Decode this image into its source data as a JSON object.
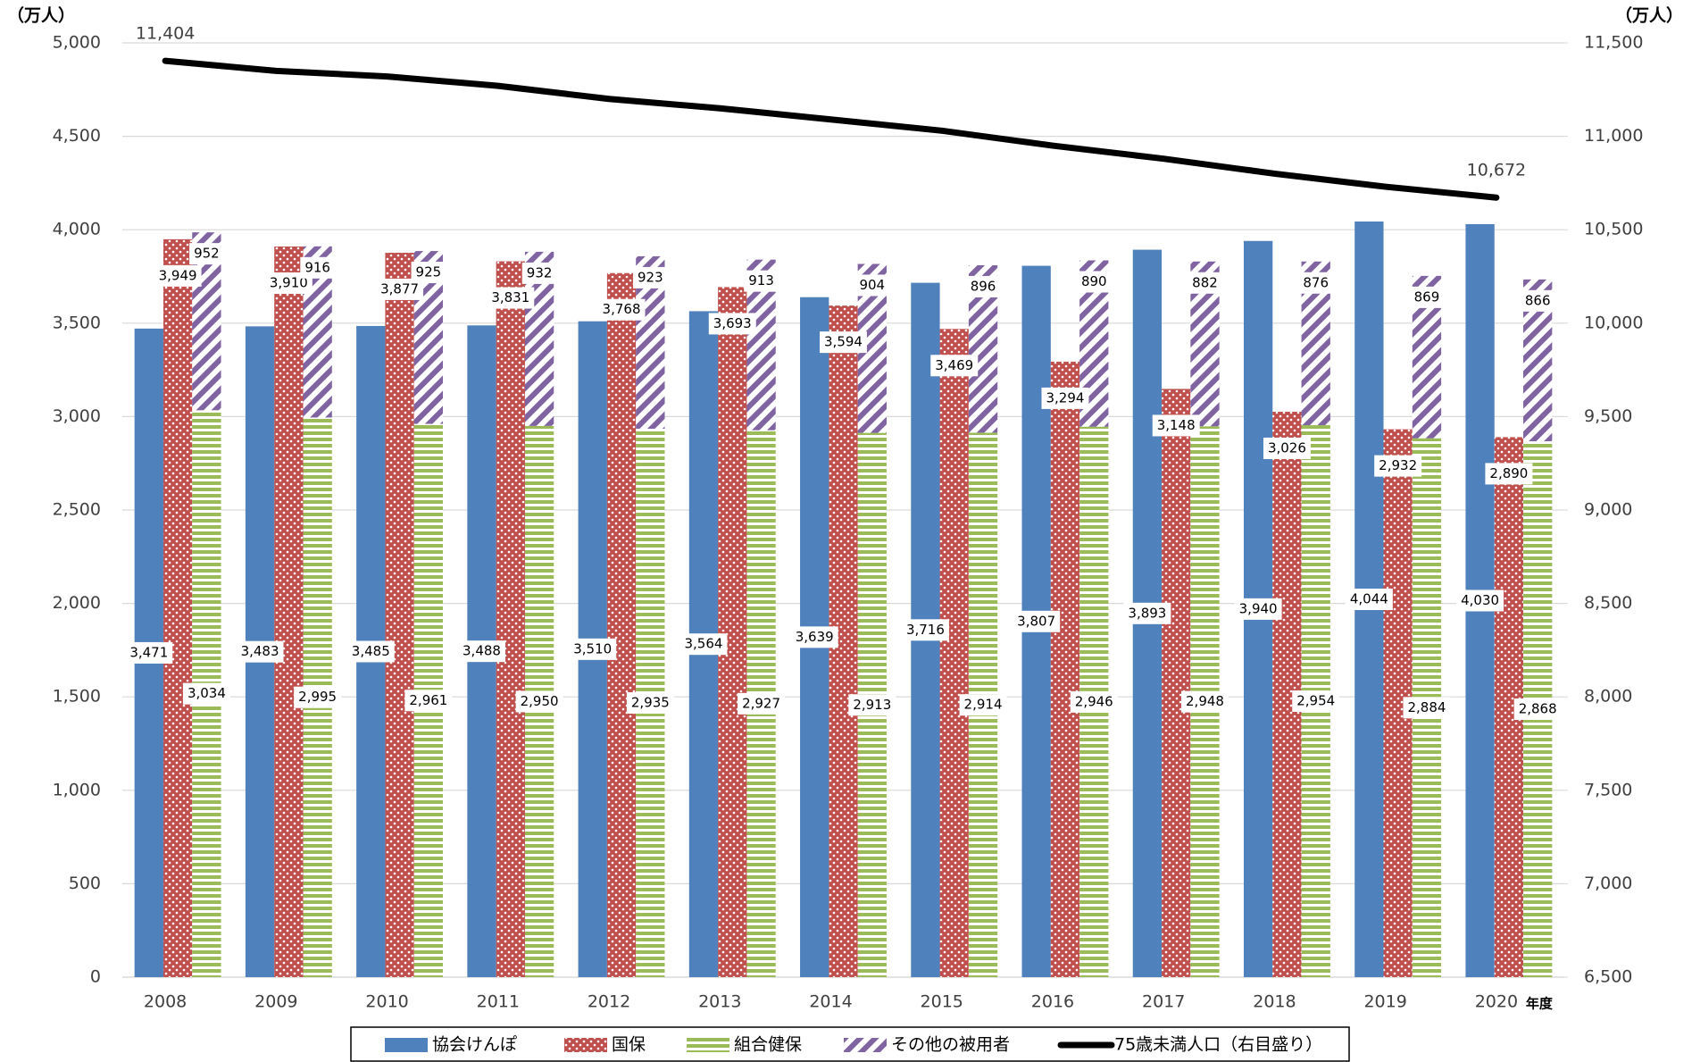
{
  "chart_data": {
    "type": "bar",
    "y_label": "（万人）",
    "y2_label": "（万人）",
    "x_label": "年度",
    "categories": [
      "2008",
      "2009",
      "2010",
      "2011",
      "2012",
      "2013",
      "2014",
      "2015",
      "2016",
      "2017",
      "2018",
      "2019",
      "2020"
    ],
    "series": [
      {
        "name": "協会けんぽ",
        "color": "#4f81bd",
        "pattern": "solid",
        "values": [
          3471,
          3483,
          3485,
          3488,
          3510,
          3564,
          3639,
          3716,
          3807,
          3893,
          3940,
          4044,
          4030
        ],
        "value_labels": [
          "3,471",
          "3,483",
          "3,485",
          "3,488",
          "3,510",
          "3,564",
          "3,639",
          "3,716",
          "3,807",
          "3,893",
          "3,940",
          "4,044",
          "4,030"
        ]
      },
      {
        "name": "国保",
        "color": "#c0504d",
        "pattern": "dots",
        "values": [
          3949,
          3910,
          3877,
          3831,
          3768,
          3693,
          3594,
          3469,
          3294,
          3148,
          3026,
          2932,
          2890
        ],
        "value_labels": [
          "3,949",
          "3,910",
          "3,877",
          "3,831",
          "3,768",
          "3,693",
          "3,594",
          "3,469",
          "3,294",
          "3,148",
          "3,026",
          "2,932",
          "2,890"
        ]
      },
      {
        "name": "組合健保",
        "color": "#9bbb59",
        "pattern": "horizontal",
        "values": [
          3034,
          2995,
          2961,
          2950,
          2935,
          2927,
          2913,
          2914,
          2946,
          2948,
          2954,
          2884,
          2868
        ],
        "value_labels": [
          "3,034",
          "2,995",
          "2,961",
          "2,950",
          "2,935",
          "2,927",
          "2,913",
          "2,914",
          "2,946",
          "2,948",
          "2,954",
          "2,884",
          "2,868"
        ]
      },
      {
        "name": "その他の被用者",
        "color": "#8064a2",
        "pattern": "diagonal",
        "stack": true,
        "values": [
          952,
          916,
          925,
          932,
          923,
          913,
          904,
          896,
          890,
          882,
          876,
          869,
          866
        ],
        "value_labels": [
          "952",
          "916",
          "925",
          "932",
          "923",
          "913",
          "904",
          "896",
          "890",
          "882",
          "876",
          "869",
          "866"
        ]
      },
      {
        "name": "75歳未満人口（右目盛り）",
        "type": "line",
        "axis": "y2",
        "color": "#000000",
        "values": [
          11404,
          11350,
          11320,
          11270,
          11200,
          11150,
          11090,
          11030,
          10950,
          10880,
          10800,
          10730,
          10672
        ],
        "value_labels": [
          "11,404",
          null,
          null,
          null,
          null,
          null,
          null,
          null,
          null,
          null,
          null,
          null,
          "10,672"
        ]
      }
    ],
    "ylim": [
      0,
      5000
    ],
    "yticks": [
      0,
      500,
      {
        "value": 1000,
        "label": "1,000"
      },
      {
        "value": 1500,
        "label": "1,500"
      },
      {
        "value": 2000,
        "label": "2,000"
      },
      {
        "value": 2500,
        "label": "2,500"
      },
      {
        "value": 3000,
        "label": "3,000"
      },
      {
        "value": 3500,
        "label": "3,500"
      },
      {
        "value": 4000,
        "label": "4,000"
      },
      {
        "value": 4500,
        "label": "4,500"
      },
      {
        "value": 5000,
        "label": "5,000"
      }
    ],
    "y2lim": [
      6500,
      11500
    ],
    "y2ticks": [
      {
        "value": 6500,
        "label": "6,500"
      },
      {
        "value": 7000,
        "label": "7,000"
      },
      {
        "value": 7500,
        "label": "7,500"
      },
      {
        "value": 8000,
        "label": "8,000"
      },
      {
        "value": 8500,
        "label": "8,500"
      },
      {
        "value": 9000,
        "label": "9,000"
      },
      {
        "value": 9500,
        "label": "9,500"
      },
      {
        "value": 10000,
        "label": "10,000"
      },
      {
        "value": 10500,
        "label": "10,500"
      },
      {
        "value": 11000,
        "label": "11,000"
      },
      {
        "value": 11500,
        "label": "11,500"
      }
    ],
    "grid": true,
    "legend": "bottom"
  }
}
